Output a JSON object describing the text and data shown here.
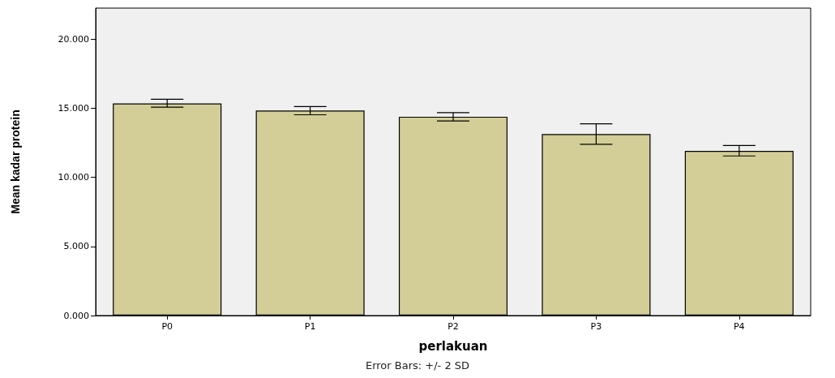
{
  "chart_data": {
    "type": "bar",
    "xlabel": "perlakuan",
    "ylabel": "Mean kadar protein",
    "categories": [
      "P0",
      "P1",
      "P2",
      "P3",
      "P4"
    ],
    "values": [
      15.35,
      14.84,
      14.39,
      13.14,
      11.92
    ],
    "errors": [
      [
        15.08,
        15.65
      ],
      [
        14.53,
        15.12
      ],
      [
        14.08,
        14.68
      ],
      [
        12.39,
        13.88
      ],
      [
        11.55,
        12.31
      ]
    ],
    "color": "#d3ce97",
    "ylim": [
      0,
      22.25
    ],
    "yticks": [
      {
        "value": 0,
        "label": "0.000"
      },
      {
        "value": 5,
        "label": "5.000"
      },
      {
        "value": 10,
        "label": "10.000"
      },
      {
        "value": 15,
        "label": "15.000"
      },
      {
        "value": 20,
        "label": "20.000"
      }
    ],
    "grid": false,
    "annotations": [
      "Error Bars: +/- 2 SD"
    ]
  }
}
